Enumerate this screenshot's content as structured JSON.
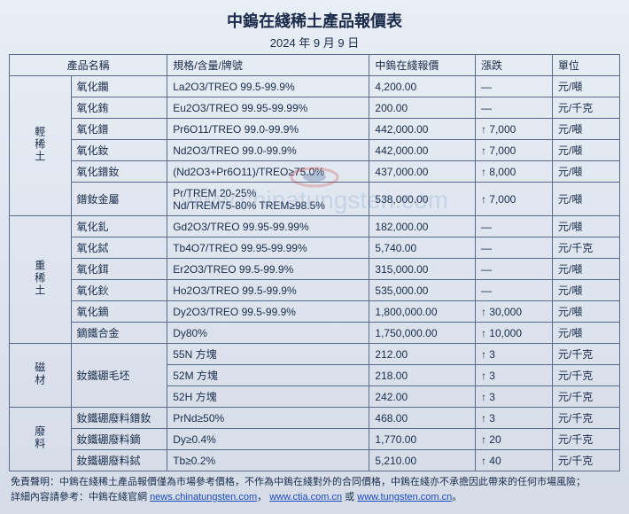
{
  "title": "中鎢在綫稀土產品報價表",
  "date": "2024 年 9 月 9 日",
  "headers": {
    "name": "產品名稱",
    "spec": "規格/含量/牌號",
    "price": "中鎢在綫報價",
    "change": "漲跌",
    "unit": "單位"
  },
  "groups": [
    {
      "label": "輕稀土",
      "rows": [
        {
          "name": "氧化鑭",
          "spec": "La2O3/TREO 99.5-99.9%",
          "price": "4,200.00",
          "change": "—",
          "unit": "元/噸"
        },
        {
          "name": "氧化銪",
          "spec": "Eu2O3/TREO 99.95-99.99%",
          "price": "200.00",
          "change": "—",
          "unit": "元/千克"
        },
        {
          "name": "氧化鐠",
          "spec": "Pr6O11/TREO 99.0-99.9%",
          "price": "442,000.00",
          "change": "↑ 7,000",
          "unit": "元/噸"
        },
        {
          "name": "氧化釹",
          "spec": "Nd2O3/TREO 99.0-99.9%",
          "price": "442,000.00",
          "change": "↑ 7,000",
          "unit": "元/噸"
        },
        {
          "name": "氧化鐠釹",
          "spec": "(Nd2O3+Pr6O11)/TREO≥75.0%",
          "price": "437,000.00",
          "change": "↑ 8,000",
          "unit": "元/噸"
        },
        {
          "name": "鐠釹金屬",
          "spec": "Pr/TREM 20-25%\nNd/TREM75-80% TREM≥98.5%",
          "price": "538,000.00",
          "change": "↑ 7,000",
          "unit": "元/噸"
        }
      ]
    },
    {
      "label": "重稀土",
      "rows": [
        {
          "name": "氧化釓",
          "spec": "Gd2O3/TREO 99.95-99.99%",
          "price": "182,000.00",
          "change": "—",
          "unit": "元/噸"
        },
        {
          "name": "氧化鋱",
          "spec": "Tb4O7/TREO 99.95-99.99%",
          "price": "5,740.00",
          "change": "—",
          "unit": "元/千克"
        },
        {
          "name": "氧化鉺",
          "spec": "Er2O3/TREO 99.5-99.9%",
          "price": "315,000.00",
          "change": "—",
          "unit": "元/噸"
        },
        {
          "name": "氧化鈥",
          "spec": "Ho2O3/TREO 99.5-99.9%",
          "price": "535,000.00",
          "change": "—",
          "unit": "元/噸"
        },
        {
          "name": "氧化鏑",
          "spec": "Dy2O3/TREO 99.5-99.9%",
          "price": "1,800,000.00",
          "change": "↑ 30,000",
          "unit": "元/噸"
        },
        {
          "name": "鏑鐵合金",
          "spec": "Dy80%",
          "price": "1,750,000.00",
          "change": "↑ 10,000",
          "unit": "元/噸"
        }
      ]
    },
    {
      "label": "磁材",
      "rows": [
        {
          "name": "釹鐵硼毛坯",
          "spec": "55N 方塊",
          "price": "212.00",
          "change": "↑ 3",
          "unit": "元/千克",
          "namerow": 3
        },
        {
          "name": "",
          "spec": "52M 方塊",
          "price": "218.00",
          "change": "↑ 3",
          "unit": "元/千克"
        },
        {
          "name": "",
          "spec": "52H 方塊",
          "price": "242.00",
          "change": "↑ 3",
          "unit": "元/千克"
        }
      ]
    },
    {
      "label": "廢料",
      "rows": [
        {
          "name": "釹鐵硼廢料鐠釹",
          "spec": "PrNd≥50%",
          "price": "468.00",
          "change": "↑ 3",
          "unit": "元/千克"
        },
        {
          "name": "釹鐵硼廢料鏑",
          "spec": "Dy≥0.4%",
          "price": "1,770.00",
          "change": "↑ 20",
          "unit": "元/千克"
        },
        {
          "name": "釹鐵硼廢料鋱",
          "spec": "Tb≥0.2%",
          "price": "5,210.00",
          "change": "↑ 40",
          "unit": "元/千克"
        }
      ]
    }
  ],
  "footer": {
    "line1_prefix": "免責聲明：中鎢在綫稀土產品報價僅為市場參考價格，不作為中鎢在綫對外的合同價格，中鎢在綫亦不承擔因此帶來的任何市場風險；",
    "line2_prefix": "詳細內容請參考：中鎢在綫官網 ",
    "link1": "news.chinatungsten.com",
    "mid": "，",
    "link2": "www.ctia.com.cn",
    "or": " 或 ",
    "link3": "www.tungsten.com.cn",
    "suffix": "。"
  },
  "watermark": "www.chinatungsten.com",
  "colors": {
    "border": "#5a6b8a",
    "text": "#1a2b4a",
    "link": "#1a4bbb"
  }
}
